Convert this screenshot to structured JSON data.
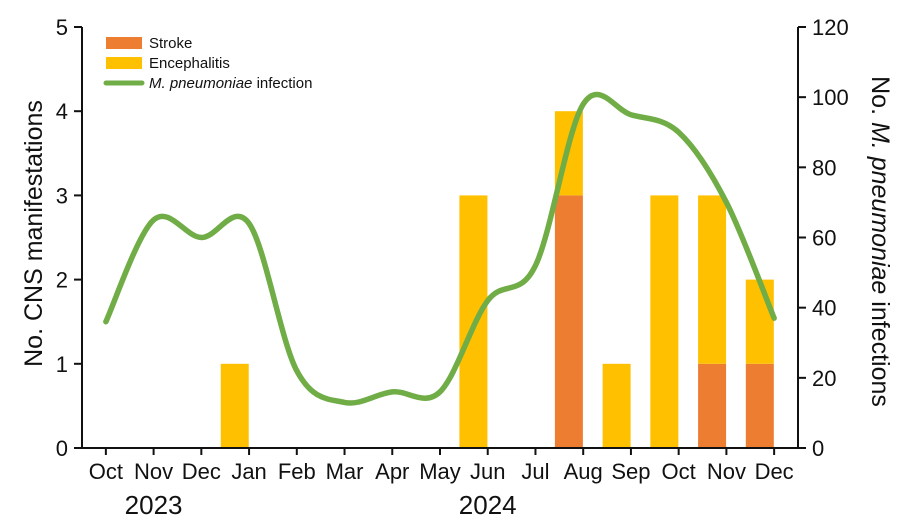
{
  "chart_data": {
    "type": "bar",
    "categories": [
      "Oct",
      "Nov",
      "Dec",
      "Jan",
      "Feb",
      "Mar",
      "Apr",
      "May",
      "Jun",
      "Jul",
      "Aug",
      "Sep",
      "Oct",
      "Nov",
      "Dec"
    ],
    "year_labels": [
      {
        "label": "2023",
        "category_index": 1
      },
      {
        "label": "2024",
        "category_index": 8
      }
    ],
    "series": [
      {
        "name": "Stroke",
        "kind": "bar",
        "axis": "left",
        "color": "#ED7D31",
        "values": [
          0,
          0,
          0,
          0,
          0,
          0,
          0,
          0,
          0,
          0,
          3,
          0,
          0,
          1,
          1
        ]
      },
      {
        "name": "Encephalitis",
        "kind": "bar",
        "axis": "left",
        "color": "#FFC000",
        "values": [
          0,
          0,
          0,
          1,
          0,
          0,
          0,
          0,
          3,
          0,
          1,
          1,
          3,
          2,
          1
        ]
      },
      {
        "name": "M. pneumoniae infection",
        "kind": "line",
        "axis": "right",
        "color": "#70AD47",
        "values": [
          36,
          65,
          60,
          64,
          22,
          13,
          16,
          16,
          42,
          52,
          98,
          95,
          90,
          70,
          37
        ]
      }
    ],
    "bar_offsets": [
      0,
      0,
      0,
      -0.3,
      0,
      0,
      0,
      0,
      -0.3,
      0,
      -0.3,
      -0.3,
      -0.3,
      -0.3,
      -0.3
    ],
    "legend": {
      "placement": "top-left",
      "entries": [
        {
          "text": "Stroke",
          "italic": ""
        },
        {
          "text": "Encephalitis",
          "italic": ""
        },
        {
          "text": " infection",
          "italic": "M. pneumoniae"
        }
      ]
    },
    "y_left": {
      "label": "No. CNS manifestations",
      "ylim": [
        0,
        5
      ],
      "ticks": [
        0,
        1,
        2,
        3,
        4,
        5
      ]
    },
    "y_right": {
      "label_prefix": "No. ",
      "label_italic": "M. pneumoniae",
      "label_suffix": " infections",
      "ylim": [
        0,
        120
      ],
      "ticks": [
        0,
        20,
        40,
        60,
        80,
        100,
        120
      ]
    },
    "grid": false
  }
}
